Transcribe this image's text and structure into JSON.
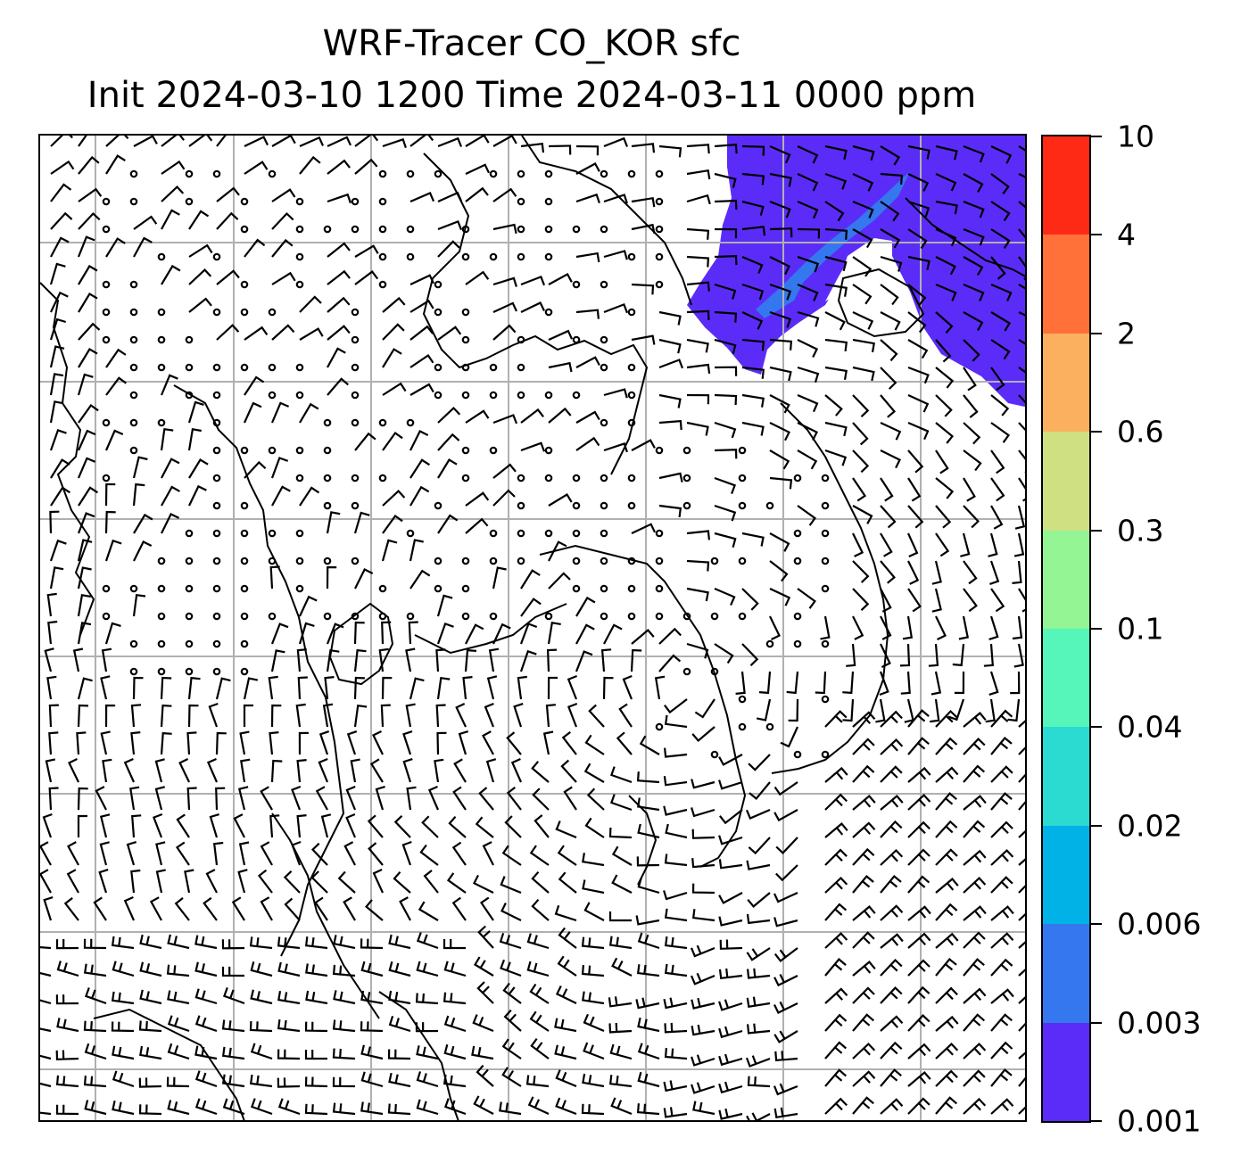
{
  "title": {
    "line1": "WRF-Tracer CO_KOR sfc",
    "line2": "Init 2024-03-10 1200 Time 2024-03-11 0000 ppm"
  },
  "colorbar": {
    "levels": [
      "0.001",
      "0.003",
      "0.006",
      "0.02",
      "0.04",
      "0.1",
      "0.3",
      "0.6",
      "2",
      "4",
      "10"
    ],
    "colors": [
      "#5b2cf7",
      "#3477ee",
      "#00b2e6",
      "#2bdad0",
      "#56f6ba",
      "#93f593",
      "#cfe082",
      "#fbb060",
      "#ff7138",
      "#ff2a15"
    ]
  },
  "map": {
    "plume_color": "#5b2cf7",
    "plume_core_color": "#3477ee",
    "gridline_color": "#b0b0b0",
    "coastline_color": "#000000"
  }
}
